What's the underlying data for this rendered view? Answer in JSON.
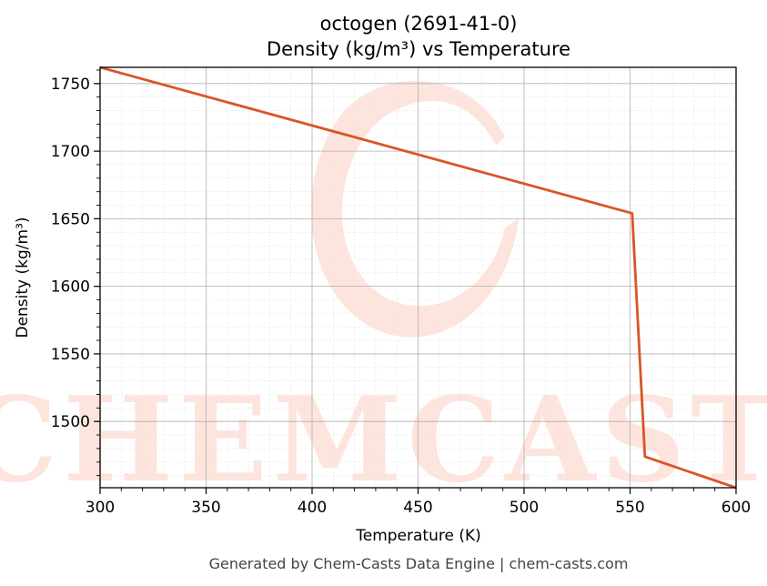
{
  "chart_data": {
    "type": "line",
    "title": "octogen (2691-41-0)",
    "subtitle": "Density (kg/m³) vs Temperature",
    "xlabel": "Temperature (K)",
    "ylabel": "Density (kg/m³)",
    "xlim": [
      300,
      600
    ],
    "ylim": [
      1451,
      1762
    ],
    "x_ticks": [
      300,
      350,
      400,
      450,
      500,
      550,
      600
    ],
    "y_ticks": [
      1500,
      1550,
      1600,
      1650,
      1700,
      1750
    ],
    "grid": true,
    "series": [
      {
        "color": "#d95525",
        "x": [
          300,
          551,
          557,
          600
        ],
        "y": [
          1762,
          1654,
          1474,
          1451
        ]
      }
    ]
  },
  "watermark": {
    "text": "CHEMCASTS",
    "color": "#fde0d8"
  },
  "footer": "Generated by Chem-Casts Data Engine | chem-casts.com"
}
